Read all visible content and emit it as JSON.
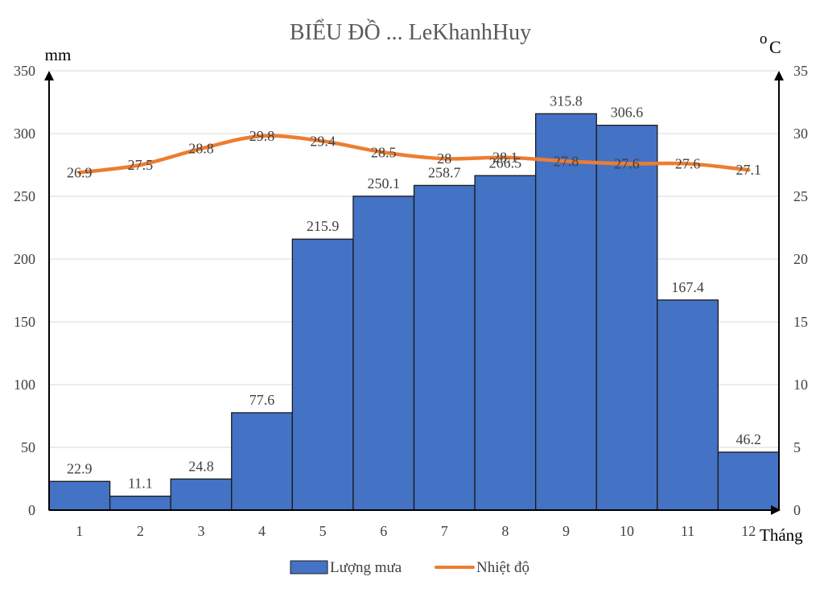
{
  "chart_data": {
    "type": "bar",
    "title": "BIỂU ĐỒ ... LeKhanhHuy",
    "categories": [
      "1",
      "2",
      "3",
      "4",
      "5",
      "6",
      "7",
      "8",
      "9",
      "10",
      "11",
      "12"
    ],
    "xlabel": "Tháng",
    "series": [
      {
        "name": "Lượng mưa",
        "type": "bar",
        "axis": "left",
        "color": "#4472C4",
        "values": [
          22.9,
          11.1,
          24.8,
          77.6,
          215.9,
          250.1,
          258.7,
          266.5,
          315.8,
          306.6,
          167.4,
          46.2
        ]
      },
      {
        "name": "Nhiệt độ",
        "type": "line",
        "axis": "right",
        "color": "#ED7D31",
        "values": [
          26.9,
          27.5,
          28.8,
          29.8,
          29.4,
          28.5,
          28,
          28.1,
          27.8,
          27.6,
          27.6,
          27.1
        ]
      }
    ],
    "y_left": {
      "label": "mm",
      "min": 0,
      "max": 350,
      "step": 50,
      "ticks": [
        "0",
        "50",
        "100",
        "150",
        "200",
        "250",
        "300",
        "350"
      ]
    },
    "y_right": {
      "label": "°C",
      "label_deg": "o",
      "label_unit": "C",
      "min": 0,
      "max": 35,
      "step": 5,
      "ticks": [
        "0",
        "5",
        "10",
        "15",
        "20",
        "25",
        "30",
        "35"
      ]
    },
    "grid": true,
    "legend_position": "bottom"
  }
}
